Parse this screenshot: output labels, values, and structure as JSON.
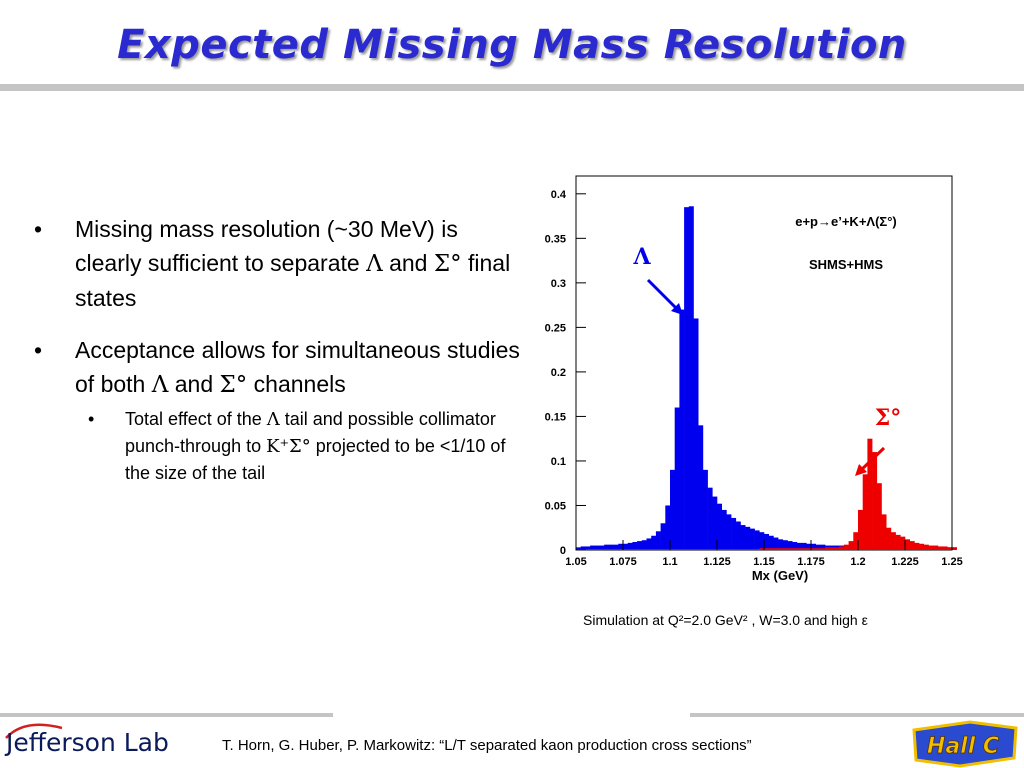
{
  "title": "Expected Missing Mass Resolution",
  "bullets": [
    {
      "pre": "Missing mass resolution (~30 MeV) is clearly sufficient to separate ",
      "g1": "Λ",
      "mid": " and ",
      "g2": "Σ°",
      "post": " final states"
    },
    {
      "pre": "Acceptance allows for simultaneous studies of both ",
      "g1": "Λ",
      "mid": " and ",
      "g2": "Σ°",
      "post": " channels"
    }
  ],
  "sub_bullet": {
    "pre": "Total effect of the ",
    "g1": "Λ",
    "mid": " tail and possible collimator punch-through to ",
    "g2": "K⁺Σ°",
    "post": " projected to be <1/10 of the size of the tail"
  },
  "bullet_char": "•",
  "caption": "Simulation at Q²=2.0 GeV² , W=3.0 and high  ε",
  "footer": {
    "text": "T. Horn, G. Huber, P. Markowitz: “L/T separated kaon production cross sections”",
    "logo": "Jefferson Lab",
    "hall_logo": "Hall C"
  },
  "chart_data": {
    "type": "bar",
    "xlabel": "Mx (GeV)",
    "ylabel": "",
    "xlim": [
      1.05,
      1.25
    ],
    "ylim": [
      0,
      0.42
    ],
    "x_ticks": [
      "1.05",
      "1.075",
      "1.1",
      "1.125",
      "1.15",
      "1.175",
      "1.2",
      "1.225",
      "1.25"
    ],
    "y_ticks": [
      "0",
      "0.05",
      "0.1",
      "0.15",
      "0.2",
      "0.25",
      "0.3",
      "0.35",
      "0.4"
    ],
    "annotations": {
      "reaction": "e+p→e’+K+Λ(Σ°)",
      "spectrometers": "SHMS+HMS",
      "lambda_label": "Λ",
      "sigma_label": "Σ°"
    },
    "bin_width": 0.0025,
    "series": [
      {
        "color": "#0000ee",
        "x_start": 1.05,
        "values": [
          0.003,
          0.004,
          0.004,
          0.005,
          0.005,
          0.005,
          0.006,
          0.006,
          0.006,
          0.007,
          0.007,
          0.008,
          0.009,
          0.01,
          0.011,
          0.013,
          0.016,
          0.021,
          0.03,
          0.05,
          0.09,
          0.16,
          0.27,
          0.385,
          0.386,
          0.26,
          0.14,
          0.09,
          0.07,
          0.06,
          0.052,
          0.045,
          0.04,
          0.036,
          0.032,
          0.028,
          0.026,
          0.024,
          0.022,
          0.02,
          0.018,
          0.016,
          0.014,
          0.012,
          0.011,
          0.01,
          0.009,
          0.008,
          0.008,
          0.007,
          0.007,
          0.006,
          0.006,
          0.005,
          0.005,
          0.005,
          0.005,
          0.004,
          0.004,
          0.004,
          0.004,
          0.004,
          0.004,
          0.003,
          0.003,
          0.003,
          0.003,
          0.003,
          0.003,
          0.003,
          0.003,
          0.003,
          0.003,
          0.003,
          0.003,
          0.003,
          0.003,
          0.003,
          0.003,
          0.003,
          0.003
        ]
      },
      {
        "color": "#ee0000",
        "x_start": 1.05,
        "values": [
          0.001,
          0.001,
          0.001,
          0.001,
          0.001,
          0.001,
          0.001,
          0.001,
          0.001,
          0.001,
          0.001,
          0.001,
          0.001,
          0.001,
          0.001,
          0.001,
          0.001,
          0.001,
          0.001,
          0.001,
          0.001,
          0.001,
          0.001,
          0.001,
          0.001,
          0.001,
          0.001,
          0.001,
          0.001,
          0.001,
          0.001,
          0.001,
          0.001,
          0.001,
          0.001,
          0.001,
          0.001,
          0.001,
          0.001,
          0.002,
          0.002,
          0.002,
          0.002,
          0.002,
          0.002,
          0.002,
          0.002,
          0.002,
          0.002,
          0.002,
          0.002,
          0.002,
          0.002,
          0.003,
          0.003,
          0.003,
          0.004,
          0.006,
          0.01,
          0.02,
          0.045,
          0.085,
          0.125,
          0.11,
          0.075,
          0.04,
          0.025,
          0.02,
          0.017,
          0.015,
          0.012,
          0.01,
          0.008,
          0.007,
          0.006,
          0.005,
          0.005,
          0.004,
          0.004,
          0.003,
          0.003
        ]
      }
    ]
  }
}
